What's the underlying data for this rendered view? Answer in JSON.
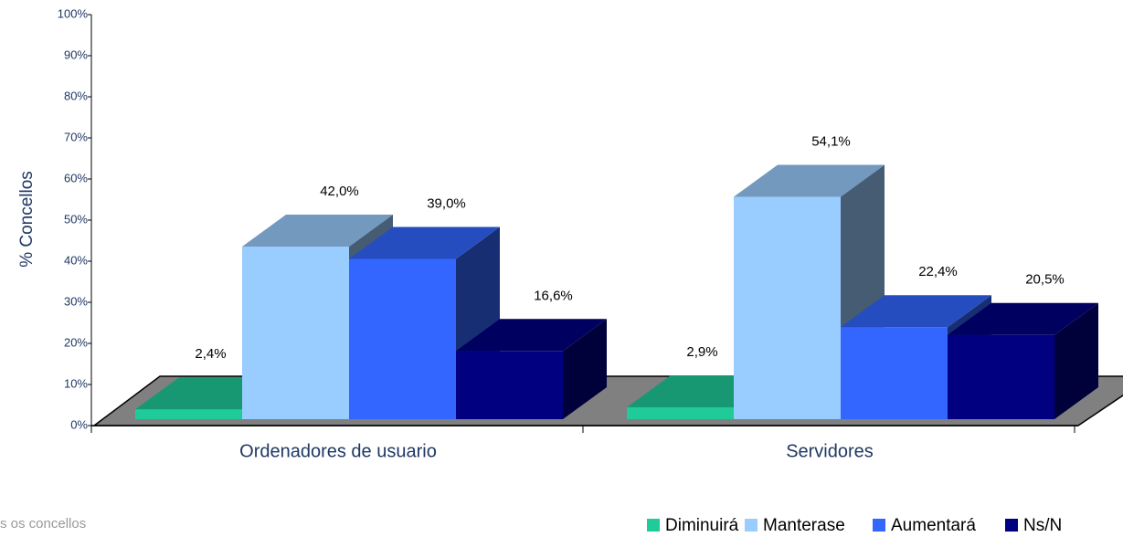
{
  "chart_data": {
    "type": "bar3d",
    "y_label": "% Concellos",
    "categories": [
      "Ordenadores de usuario",
      "Servidores"
    ],
    "series": [
      {
        "name": "Diminuirá",
        "color": "#1ecb99",
        "values": [
          2.4,
          2.9
        ],
        "value_labels": [
          "2,4%",
          "2,9%"
        ]
      },
      {
        "name": "Manterase",
        "color": "#99ccff",
        "values": [
          42.0,
          54.1
        ],
        "value_labels": [
          "42,0%",
          "54,1%"
        ]
      },
      {
        "name": "Aumentará",
        "color": "#3366ff",
        "values": [
          39.0,
          22.4
        ],
        "value_labels": [
          "39,0%",
          "22,4%"
        ]
      },
      {
        "name": "Ns/N",
        "color": "#000080",
        "values": [
          16.6,
          20.5
        ],
        "value_labels": [
          "16,6%",
          "20,5%"
        ]
      }
    ],
    "ylim": [
      0,
      100
    ],
    "yticks": [
      {
        "value": 0,
        "label": "0%"
      },
      {
        "value": 10,
        "label": "10%"
      },
      {
        "value": 20,
        "label": "20%"
      },
      {
        "value": 30,
        "label": "30%"
      },
      {
        "value": 40,
        "label": "40%"
      },
      {
        "value": 50,
        "label": "50%"
      },
      {
        "value": 60,
        "label": "60%"
      },
      {
        "value": 70,
        "label": "70%"
      },
      {
        "value": 80,
        "label": "80%"
      },
      {
        "value": 90,
        "label": "90%"
      },
      {
        "value": 100,
        "label": "100%"
      }
    ],
    "legend": "bottom-right",
    "footnote": "s os concellos"
  }
}
